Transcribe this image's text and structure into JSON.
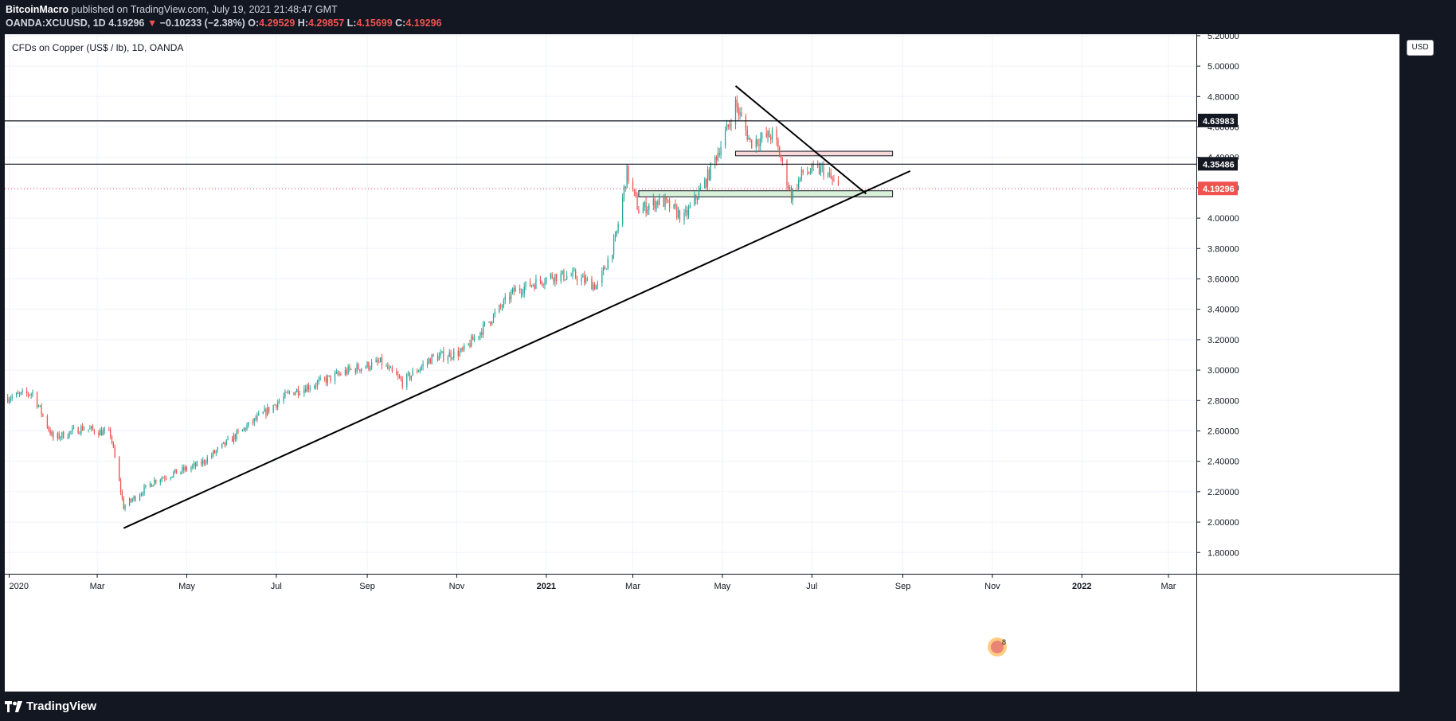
{
  "header": {
    "author": "BitcoinMacro",
    "published_text": " published on TradingView.com, July 19, 2021 21:48:47 GMT",
    "symbol": "OANDA:XCUUSD, 1D",
    "last": "4.19296",
    "change": "−0.10233 (−2.38%)",
    "open_label": "O:",
    "open": "4.29529",
    "high_label": "H:",
    "high": "4.29857",
    "low_label": "L:",
    "low": "4.15699",
    "close_label": "C:",
    "close": "4.19296"
  },
  "chart": {
    "title": "CFDs on Copper (US$ / lb), 1D, OANDA",
    "currency": "USD"
  },
  "footer": {
    "brand": "TradingView"
  },
  "colors": {
    "up": "#26a69a",
    "down": "#ef5350",
    "bg": "#131722"
  },
  "chart_data": {
    "type": "candlestick",
    "title": "CFDs on Copper (US$ / lb), 1D, OANDA",
    "x_ticks": [
      "2020",
      "Mar",
      "May",
      "Jul",
      "Sep",
      "Nov",
      "2021",
      "Mar",
      "May",
      "Jul",
      "Sep",
      "Nov",
      "2022",
      "Mar"
    ],
    "x_tick_dates": [
      "2020-01-01",
      "2020-03-01",
      "2020-05-01",
      "2020-07-01",
      "2020-09-01",
      "2020-11-01",
      "2021-01-01",
      "2021-03-01",
      "2021-05-01",
      "2021-07-01",
      "2021-09-01",
      "2021-11-01",
      "2022-01-01",
      "2022-03-01"
    ],
    "bold_ticks": [
      "2021",
      "2022"
    ],
    "y_ticks": [
      "5.20000",
      "5.00000",
      "4.80000",
      "4.60000",
      "4.40000",
      "4.20000",
      "4.00000",
      "3.80000",
      "3.60000",
      "3.40000",
      "3.20000",
      "3.00000",
      "2.80000",
      "2.60000",
      "2.40000",
      "2.20000",
      "2.00000",
      "1.80000"
    ],
    "ylim": [
      1.66,
      5.21
    ],
    "xlim": [
      "2019-12-29",
      "2022-03-20"
    ],
    "price_path": [
      [
        "2019-12-31",
        2.82
      ],
      [
        "2020-01-17",
        2.85
      ],
      [
        "2020-01-31",
        2.55
      ],
      [
        "2020-02-20",
        2.62
      ],
      [
        "2020-03-10",
        2.58
      ],
      [
        "2020-03-19",
        2.1
      ],
      [
        "2020-04-10",
        2.28
      ],
      [
        "2020-05-10",
        2.38
      ],
      [
        "2020-06-10",
        2.62
      ],
      [
        "2020-07-10",
        2.85
      ],
      [
        "2020-07-31",
        2.92
      ],
      [
        "2020-08-20",
        3.0
      ],
      [
        "2020-09-10",
        3.05
      ],
      [
        "2020-09-25",
        2.92
      ],
      [
        "2020-10-15",
        3.08
      ],
      [
        "2020-11-05",
        3.12
      ],
      [
        "2020-11-30",
        3.4
      ],
      [
        "2020-12-10",
        3.52
      ],
      [
        "2021-01-05",
        3.62
      ],
      [
        "2021-01-20",
        3.62
      ],
      [
        "2021-02-05",
        3.55
      ],
      [
        "2021-02-17",
        3.85
      ],
      [
        "2021-02-25",
        4.3
      ],
      [
        "2021-03-05",
        4.05
      ],
      [
        "2021-03-20",
        4.12
      ],
      [
        "2021-04-05",
        4.0
      ],
      [
        "2021-04-20",
        4.25
      ],
      [
        "2021-05-05",
        4.6
      ],
      [
        "2021-05-10",
        4.75
      ],
      [
        "2021-05-20",
        4.5
      ],
      [
        "2021-06-05",
        4.55
      ],
      [
        "2021-06-17",
        4.15
      ],
      [
        "2021-06-25",
        4.3
      ],
      [
        "2021-07-09",
        4.32
      ],
      [
        "2021-07-19",
        4.19
      ]
    ],
    "horizontal_lines": [
      {
        "value": 4.63983,
        "label": "4.63983",
        "style": "solid"
      },
      {
        "value": 4.35486,
        "label": "4.35486",
        "style": "solid"
      },
      {
        "value": 4.19296,
        "label": "4.19296",
        "style": "dotted"
      }
    ],
    "trend_lines": [
      {
        "from": [
          "2020-03-19",
          1.96
        ],
        "to": [
          "2021-09-06",
          4.31
        ]
      },
      {
        "from": [
          "2021-05-10",
          4.87
        ],
        "to": [
          "2021-08-07",
          4.16
        ]
      }
    ],
    "zones": [
      {
        "from": "2021-05-10",
        "to": "2021-08-25",
        "low": 4.41,
        "high": 4.44,
        "fill": "#f8d8d8"
      },
      {
        "from": "2021-03-05",
        "to": "2021-08-25",
        "low": 4.14,
        "high": 4.18,
        "fill": "#d8f0d8"
      }
    ]
  }
}
